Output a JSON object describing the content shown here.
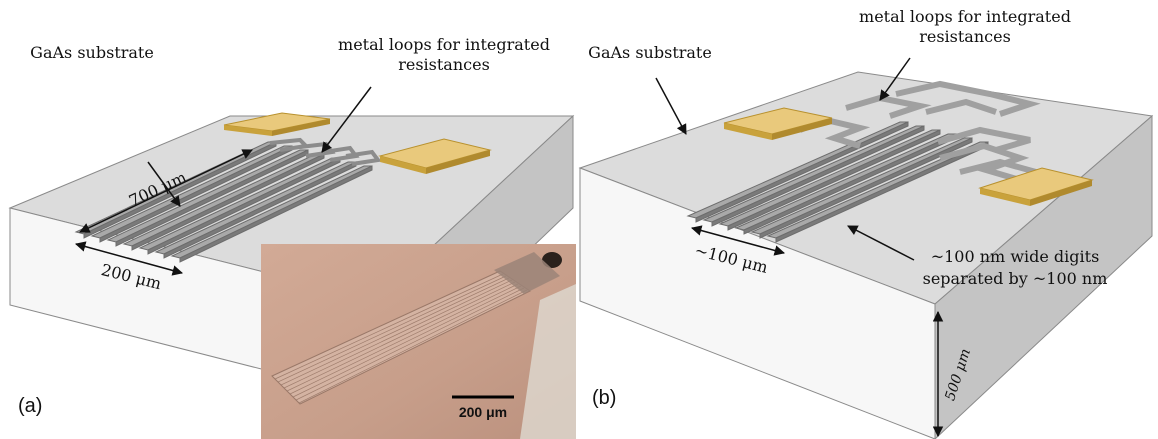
{
  "panel_a": {
    "tag": "(a)",
    "substrate_label": "GaAs substrate",
    "loops_label_line1": "metal loops for integrated",
    "loops_label_line2": "resistances",
    "length_label": "700 μm",
    "width_label": "200 μm"
  },
  "inset": {
    "scale_label": "200 μm"
  },
  "panel_b": {
    "tag": "(b)",
    "substrate_label": "GaAs substrate",
    "loops_label_line1": "metal loops for integrated",
    "loops_label_line2": "resistances",
    "width_label": "~100 μm",
    "digits_label_line1": "~100 nm wide digits",
    "digits_label_line2": "separated by ~100 nm",
    "thickness_label": "500 μm"
  },
  "colors": {
    "substrate_top": "#d9d9d9",
    "substrate_front": "#f6f6f6",
    "substrate_side": "#bdbdbd",
    "pad_top": "#e8c77a",
    "pad_edge": "#c9a23c",
    "digit": "#a8a8a8",
    "digit_edge": "#6f6f6f",
    "inset_bg": "#c9a18b"
  }
}
